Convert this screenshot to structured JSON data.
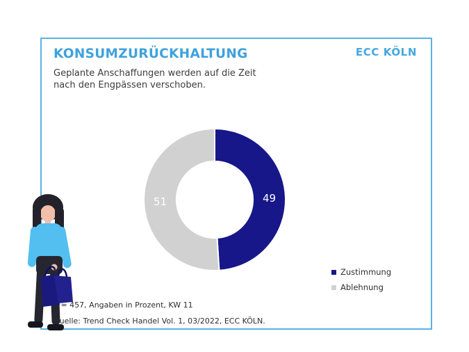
{
  "header": {
    "title": "KONSUMZURÜCKHALTUNG",
    "brand": "ECC KÖLN",
    "subtitle_lines": [
      "Geplante Anschaffungen werden auf die Zeit",
      "nach den Engpässen verschoben."
    ]
  },
  "chart_data": {
    "type": "pie",
    "subtype": "donut",
    "title": "KONSUMZURÜCKHALTUNG",
    "categories": [
      "Zustimmung",
      "Ablehnung"
    ],
    "values": [
      49,
      51
    ],
    "colors": [
      "#171789",
      "#D1D1D1"
    ],
    "data_label_color": "#FFFFFF",
    "units": "percent",
    "start_angle_deg": 0,
    "direction": "clockwise",
    "inner_radius_ratio": 0.54,
    "legend_position": "bottom-right",
    "grid": false
  },
  "footnotes": {
    "line1": "n = 457, Angaben in Prozent, KW 11",
    "line2": "Quelle: Trend Check Handel Vol. 1, 03/2022, ECC KÖLN."
  },
  "theme": {
    "accent_blue": "#3FA2DC",
    "border_blue": "#5BB1E3",
    "navy": "#171789",
    "gray": "#D1D1D1",
    "text_dark": "#3C3C3C"
  },
  "illustration": {
    "name": "woman-with-shopping-bags"
  }
}
